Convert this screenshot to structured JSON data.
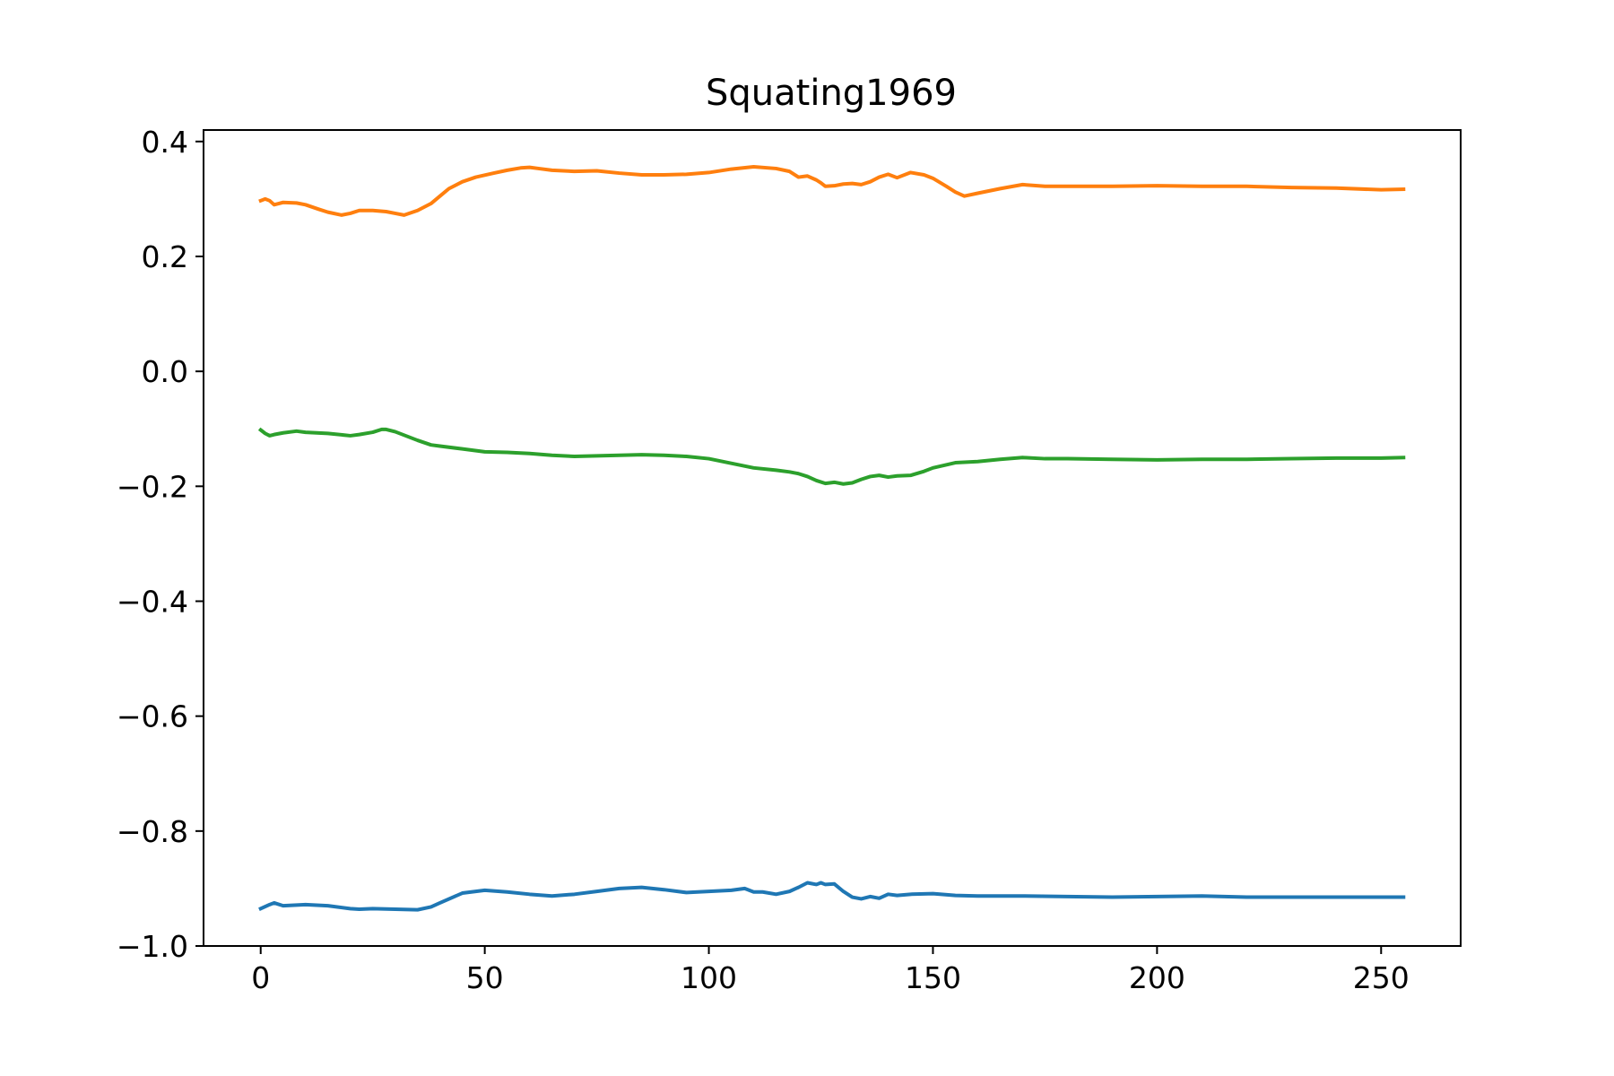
{
  "chart_data": {
    "type": "line",
    "title": "Squating1969",
    "xlabel": "",
    "ylabel": "",
    "xlim": [
      -12.75,
      267.75
    ],
    "ylim": [
      -1.0,
      0.42
    ],
    "xticks": [
      0,
      50,
      100,
      150,
      200,
      250
    ],
    "xtick_labels": [
      "0",
      "50",
      "100",
      "150",
      "200",
      "250"
    ],
    "yticks": [
      0.4,
      0.2,
      0.0,
      -0.2,
      -0.4,
      -0.6,
      -0.8,
      -1.0
    ],
    "ytick_labels": [
      "0.4",
      "0.2",
      "0.0",
      "−0.2",
      "−0.4",
      "−0.6",
      "−0.8",
      "−1.0"
    ],
    "grid": false,
    "legend": "none",
    "series": [
      {
        "color": "#1f77b4",
        "x": [
          0,
          2,
          3,
          5,
          10,
          15,
          20,
          22,
          25,
          30,
          35,
          38,
          40,
          45,
          50,
          55,
          60,
          65,
          70,
          75,
          80,
          85,
          90,
          95,
          100,
          105,
          108,
          110,
          112,
          115,
          118,
          120,
          122,
          124,
          125,
          126,
          128,
          130,
          132,
          134,
          136,
          138,
          140,
          142,
          145,
          150,
          155,
          160,
          170,
          180,
          190,
          200,
          210,
          220,
          230,
          240,
          250,
          255
        ],
        "y": [
          -0.935,
          -0.928,
          -0.925,
          -0.93,
          -0.928,
          -0.93,
          -0.935,
          -0.936,
          -0.935,
          -0.936,
          -0.937,
          -0.932,
          -0.925,
          -0.908,
          -0.903,
          -0.906,
          -0.91,
          -0.913,
          -0.91,
          -0.905,
          -0.9,
          -0.898,
          -0.902,
          -0.907,
          -0.905,
          -0.903,
          -0.9,
          -0.906,
          -0.906,
          -0.91,
          -0.905,
          -0.898,
          -0.89,
          -0.893,
          -0.89,
          -0.893,
          -0.892,
          -0.905,
          -0.915,
          -0.918,
          -0.914,
          -0.917,
          -0.91,
          -0.912,
          -0.91,
          -0.909,
          -0.912,
          -0.913,
          -0.913,
          -0.914,
          -0.915,
          -0.914,
          -0.913,
          -0.915,
          -0.915,
          -0.915,
          -0.915,
          -0.915
        ]
      },
      {
        "color": "#ff7f0e",
        "x": [
          0,
          1,
          2,
          3,
          4,
          5,
          8,
          10,
          13,
          15,
          18,
          20,
          22,
          25,
          28,
          30,
          32,
          35,
          38,
          40,
          42,
          45,
          48,
          52,
          55,
          58,
          60,
          62,
          65,
          70,
          75,
          80,
          85,
          90,
          95,
          100,
          105,
          110,
          115,
          118,
          120,
          122,
          124,
          125,
          126,
          128,
          130,
          132,
          134,
          136,
          138,
          140,
          142,
          145,
          148,
          150,
          153,
          155,
          157,
          160,
          165,
          170,
          175,
          180,
          190,
          200,
          210,
          220,
          230,
          240,
          250,
          255
        ],
        "y": [
          0.297,
          0.3,
          0.297,
          0.29,
          0.292,
          0.294,
          0.293,
          0.29,
          0.282,
          0.277,
          0.272,
          0.275,
          0.28,
          0.28,
          0.278,
          0.275,
          0.272,
          0.28,
          0.292,
          0.305,
          0.318,
          0.33,
          0.338,
          0.345,
          0.35,
          0.354,
          0.355,
          0.353,
          0.35,
          0.348,
          0.349,
          0.345,
          0.342,
          0.342,
          0.343,
          0.346,
          0.352,
          0.356,
          0.353,
          0.348,
          0.338,
          0.34,
          0.333,
          0.328,
          0.322,
          0.323,
          0.326,
          0.327,
          0.325,
          0.33,
          0.338,
          0.343,
          0.337,
          0.346,
          0.342,
          0.336,
          0.322,
          0.312,
          0.305,
          0.31,
          0.318,
          0.325,
          0.322,
          0.322,
          0.322,
          0.323,
          0.322,
          0.322,
          0.32,
          0.319,
          0.316,
          0.317
        ]
      },
      {
        "color": "#2ca02c",
        "x": [
          0,
          1,
          2,
          3,
          5,
          8,
          10,
          15,
          20,
          22,
          25,
          27,
          28,
          30,
          35,
          38,
          40,
          45,
          50,
          55,
          60,
          65,
          70,
          75,
          80,
          85,
          90,
          95,
          100,
          105,
          110,
          115,
          118,
          120,
          122,
          124,
          126,
          128,
          130,
          132,
          134,
          136,
          138,
          140,
          142,
          145,
          148,
          150,
          155,
          160,
          165,
          170,
          175,
          180,
          190,
          200,
          210,
          220,
          230,
          240,
          250,
          255
        ],
        "y": [
          -0.102,
          -0.108,
          -0.112,
          -0.11,
          -0.107,
          -0.104,
          -0.106,
          -0.108,
          -0.112,
          -0.11,
          -0.106,
          -0.101,
          -0.101,
          -0.105,
          -0.12,
          -0.128,
          -0.13,
          -0.135,
          -0.14,
          -0.141,
          -0.143,
          -0.146,
          -0.148,
          -0.147,
          -0.146,
          -0.145,
          -0.146,
          -0.148,
          -0.152,
          -0.16,
          -0.168,
          -0.172,
          -0.175,
          -0.178,
          -0.183,
          -0.19,
          -0.195,
          -0.193,
          -0.196,
          -0.194,
          -0.188,
          -0.183,
          -0.181,
          -0.184,
          -0.182,
          -0.181,
          -0.174,
          -0.168,
          -0.159,
          -0.157,
          -0.153,
          -0.15,
          -0.152,
          -0.152,
          -0.153,
          -0.154,
          -0.153,
          -0.153,
          -0.152,
          -0.151,
          -0.151,
          -0.15
        ]
      }
    ]
  }
}
